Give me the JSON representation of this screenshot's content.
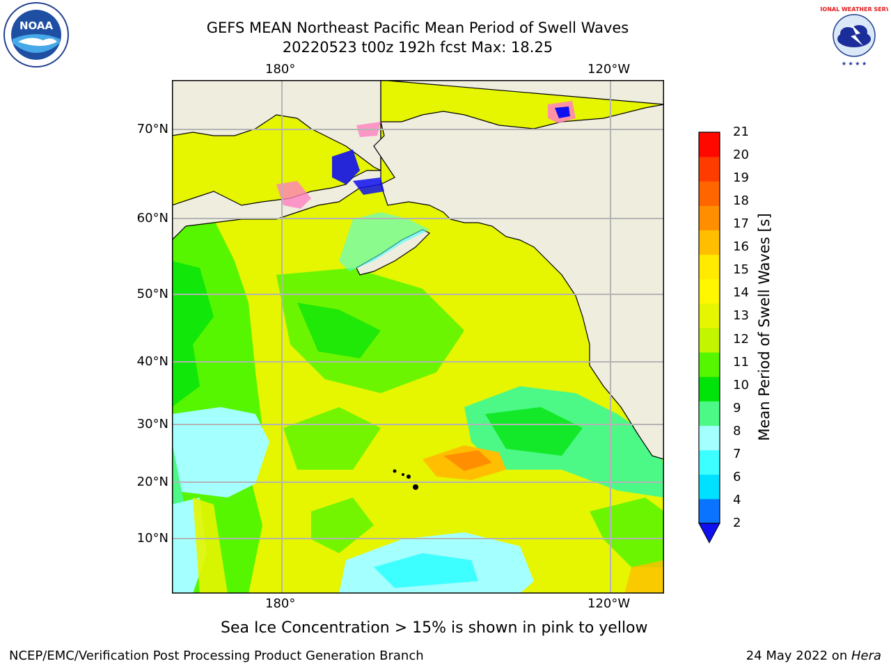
{
  "title": {
    "line1": "GEFS MEAN Northeast Pacific Mean Period of Swell Waves",
    "line2": "20220523 t00z 192h fcst   Max: 18.25"
  },
  "logos": {
    "noaa_text": "NOAA",
    "nws_text": "NATIONAL WEATHER SERVICE"
  },
  "map": {
    "lon_labels_top": [
      "180°",
      "120°W"
    ],
    "lon_labels_bottom": [
      "180°",
      "120°W"
    ],
    "lat_labels": [
      "70°N",
      "60°N",
      "50°N",
      "40°N",
      "30°N",
      "20°N",
      "10°N"
    ],
    "colors": {
      "land": "#efedde",
      "grid": "#b4b4b4"
    }
  },
  "colorbar": {
    "title": "Mean Period of Swell Waves [s]",
    "levels": [
      "2",
      "4",
      "6",
      "7",
      "8",
      "9",
      "10",
      "11",
      "12",
      "13",
      "14",
      "15",
      "16",
      "17",
      "18",
      "19",
      "20",
      "21"
    ],
    "colors": [
      "#0a73ff",
      "#00e0ff",
      "#3effff",
      "#a4ffff",
      "#4cf987",
      "#00e30a",
      "#56f500",
      "#c3f500",
      "#e6f500",
      "#fff700",
      "#ffea00",
      "#ffbf00",
      "#ff8f00",
      "#ff6600",
      "#ff3c00",
      "#ff0800"
    ],
    "extend_color": "#0f0ff0"
  },
  "caption": "Sea Ice Concentration > 15% is shown in pink to yellow",
  "footer": {
    "left": "NCEP/EMC/Verification Post Processing Product Generation Branch",
    "right_prefix": "24 May 2022 on ",
    "right_host": "Hera"
  }
}
